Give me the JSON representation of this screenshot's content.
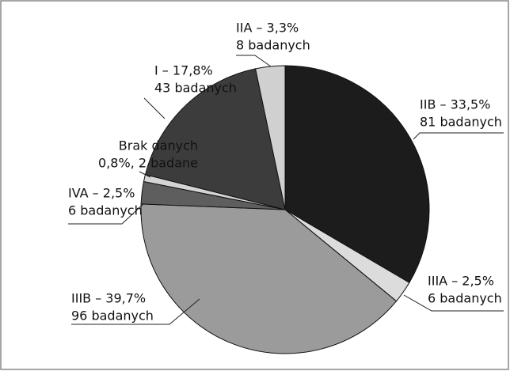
{
  "chart_data": {
    "type": "pie",
    "values": [
      33.5,
      2.5,
      39.7,
      2.5,
      0.8,
      17.8,
      3.3
    ],
    "value_labels": [
      [
        "IIB – 33,5%",
        "81 badanych"
      ],
      [
        "IIIA – 2,5%",
        "6 badanych"
      ],
      [
        "IIIB – 39,7%",
        "96 badanych"
      ],
      [
        "IVA – 2,5%",
        "6 badanych"
      ],
      [
        "Brak danych",
        "0,8%, 2 badane"
      ],
      [
        "I – 17,8%",
        "43 badanych"
      ],
      [
        "IIA – 3,3%",
        "8 badanych"
      ]
    ],
    "colors": [
      "#1c1c1c",
      "#dcdcdc",
      "#9b9b9b",
      "#5e5e5e",
      "#d4d4d4",
      "#3c3c3c",
      "#d0d0d0"
    ]
  }
}
